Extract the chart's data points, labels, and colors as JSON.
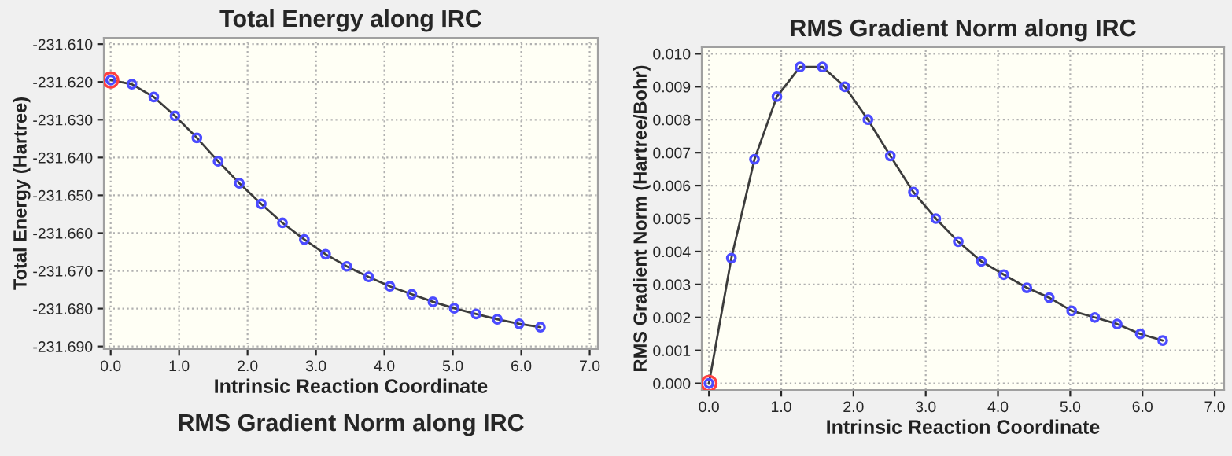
{
  "chart_data": [
    {
      "type": "line",
      "title": "Total Energy along IRC",
      "xlabel": "Intrinsic Reaction Coordinate",
      "ylabel": "Total Energy (Hartree)",
      "x": [
        0.0,
        0.31,
        0.63,
        0.94,
        1.26,
        1.57,
        1.88,
        2.2,
        2.51,
        2.83,
        3.14,
        3.45,
        3.77,
        4.08,
        4.4,
        4.71,
        5.02,
        5.34,
        5.65,
        5.97,
        6.28
      ],
      "series": [
        {
          "color": "#3c3c3c",
          "marker": "circle",
          "values": [
            -231.6195,
            -231.6206,
            -231.624,
            -231.629,
            -231.6348,
            -231.641,
            -231.6468,
            -231.6523,
            -231.6573,
            -231.6617,
            -231.6656,
            -231.6688,
            -231.6716,
            -231.6741,
            -231.6762,
            -231.6782,
            -231.6799,
            -231.6814,
            -231.6828,
            -231.684,
            -231.6849
          ]
        },
        {
          "type": "scatter",
          "color": "#ff4040",
          "marker": "circle",
          "x": [
            0.0
          ],
          "values": [
            -231.6195
          ]
        }
      ],
      "xlim": [
        -0.1,
        7.12
      ],
      "xticks": [
        {
          "value": 0,
          "label": "0.0"
        },
        {
          "value": 1,
          "label": "1.0"
        },
        {
          "value": 2,
          "label": "2.0"
        },
        {
          "value": 3,
          "label": "3.0"
        },
        {
          "value": 4,
          "label": "4.0"
        },
        {
          "value": 5,
          "label": "5.0"
        },
        {
          "value": 6,
          "label": "6.0"
        },
        {
          "value": 7,
          "label": "7.0"
        }
      ],
      "ylim": [
        -231.6907,
        -231.6083
      ],
      "yticks": [
        {
          "value": -231.61,
          "label": "-231.610"
        },
        {
          "value": -231.62,
          "label": "-231.620"
        },
        {
          "value": -231.63,
          "label": "-231.630"
        },
        {
          "value": -231.64,
          "label": "-231.640"
        },
        {
          "value": -231.65,
          "label": "-231.650"
        },
        {
          "value": -231.66,
          "label": "-231.660"
        },
        {
          "value": -231.67,
          "label": "-231.670"
        },
        {
          "value": -231.68,
          "label": "-231.680"
        },
        {
          "value": -231.69,
          "label": "-231.690"
        }
      ],
      "grid": true,
      "line_style": "solid",
      "legend": false,
      "annotations": [
        "RMS Gradient Norm along IRC"
      ]
    },
    {
      "type": "line",
      "title": "RMS Gradient Norm along IRC",
      "xlabel": "Intrinsic Reaction Coordinate",
      "ylabel": "RMS Gradient Norm (Hartree/Bohr)",
      "x": [
        0.0,
        0.31,
        0.63,
        0.94,
        1.26,
        1.57,
        1.88,
        2.2,
        2.51,
        2.83,
        3.14,
        3.45,
        3.77,
        4.08,
        4.4,
        4.71,
        5.02,
        5.34,
        5.65,
        5.97,
        6.28
      ],
      "series": [
        {
          "color": "#3c3c3c",
          "marker": "circle",
          "values": [
            0.0,
            0.0038,
            0.0068,
            0.0087,
            0.0096,
            0.0096,
            0.009,
            0.008,
            0.0069,
            0.0058,
            0.005,
            0.0043,
            0.0037,
            0.0033,
            0.0029,
            0.0026,
            0.0022,
            0.002,
            0.0018,
            0.0015,
            0.0013
          ]
        },
        {
          "type": "scatter",
          "color": "#ff4040",
          "marker": "circle",
          "x": [
            0.0
          ],
          "values": [
            0.0
          ]
        }
      ],
      "xlim": [
        -0.1,
        7.13
      ],
      "xticks": [
        {
          "value": 0,
          "label": "0.0"
        },
        {
          "value": 1,
          "label": "1.0"
        },
        {
          "value": 2,
          "label": "2.0"
        },
        {
          "value": 3,
          "label": "3.0"
        },
        {
          "value": 4,
          "label": "4.0"
        },
        {
          "value": 5,
          "label": "5.0"
        },
        {
          "value": 6,
          "label": "6.0"
        },
        {
          "value": 7,
          "label": "7.0"
        }
      ],
      "ylim": [
        -0.0002,
        0.0102
      ],
      "yticks": [
        {
          "value": 0,
          "label": "0.000"
        },
        {
          "value": 0.001,
          "label": "0.001"
        },
        {
          "value": 0.002,
          "label": "0.002"
        },
        {
          "value": 0.003,
          "label": "0.003"
        },
        {
          "value": 0.004,
          "label": "0.004"
        },
        {
          "value": 0.005,
          "label": "0.005"
        },
        {
          "value": 0.006,
          "label": "0.006"
        },
        {
          "value": 0.007,
          "label": "0.007"
        },
        {
          "value": 0.008,
          "label": "0.008"
        },
        {
          "value": 0.009,
          "label": "0.009"
        },
        {
          "value": 0.01,
          "label": "0.010"
        }
      ],
      "grid": true,
      "line_style": "solid",
      "legend": false
    }
  ]
}
